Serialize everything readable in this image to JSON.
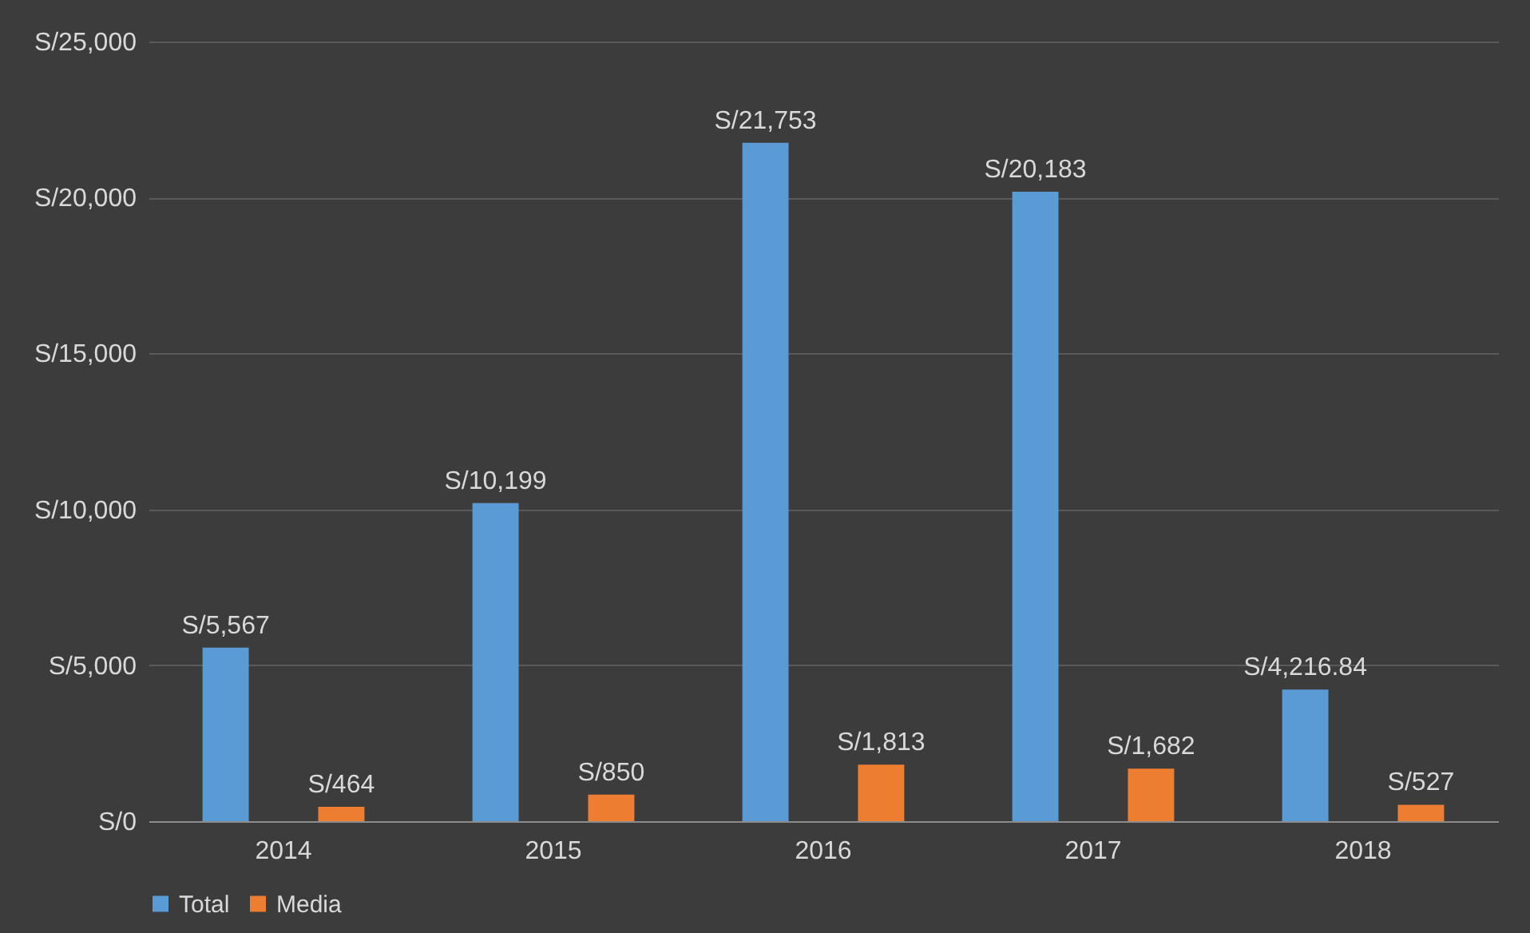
{
  "chart_data": {
    "type": "bar",
    "categories": [
      "2014",
      "2015",
      "2016",
      "2017",
      "2018"
    ],
    "series": [
      {
        "name": "Total",
        "color": "#5b9bd5",
        "values": [
          5567,
          10199,
          21753,
          20183,
          4216.84
        ],
        "value_labels": [
          "S/5,567",
          "S/10,199",
          "S/21,753",
          "S/20,183",
          "S/4,216.84"
        ]
      },
      {
        "name": "Media",
        "color": "#ed7d31",
        "values": [
          464,
          850,
          1813,
          1682,
          527
        ],
        "value_labels": [
          "S/464",
          "S/850",
          "S/1,813",
          "S/1,682",
          "S/527"
        ]
      }
    ],
    "ylim": [
      0,
      25000
    ],
    "yticks": [
      {
        "value": 0,
        "label": "S/0"
      },
      {
        "value": 5000,
        "label": "S/5,000"
      },
      {
        "value": 10000,
        "label": "S/10,000"
      },
      {
        "value": 15000,
        "label": "S/15,000"
      },
      {
        "value": 20000,
        "label": "S/20,000"
      },
      {
        "value": 25000,
        "label": "S/25,000"
      }
    ],
    "grid": "y",
    "legend": "bottom"
  }
}
